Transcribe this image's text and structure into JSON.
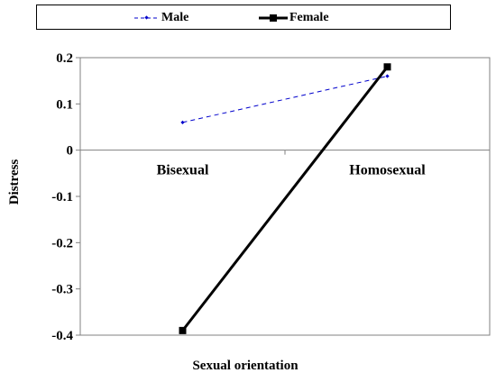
{
  "chart_data": {
    "type": "line",
    "categories": [
      "Bisexual",
      "Homosexual"
    ],
    "series": [
      {
        "name": "Male",
        "values": [
          0.06,
          0.16
        ],
        "color": "#0000cc",
        "style": "dashed",
        "marker": "diamond"
      },
      {
        "name": "Female",
        "values": [
          -0.39,
          0.18
        ],
        "color": "#000000",
        "style": "solid",
        "marker": "square"
      }
    ],
    "xlabel": "Sexual orientation",
    "ylabel": "Distress",
    "ylim": [
      -0.4,
      0.2
    ],
    "yticks": [
      "0.2",
      "0.1",
      "0",
      "-0.1",
      "-0.2",
      "-0.3",
      "-0.4"
    ],
    "grid": false,
    "legend_position": "top"
  }
}
